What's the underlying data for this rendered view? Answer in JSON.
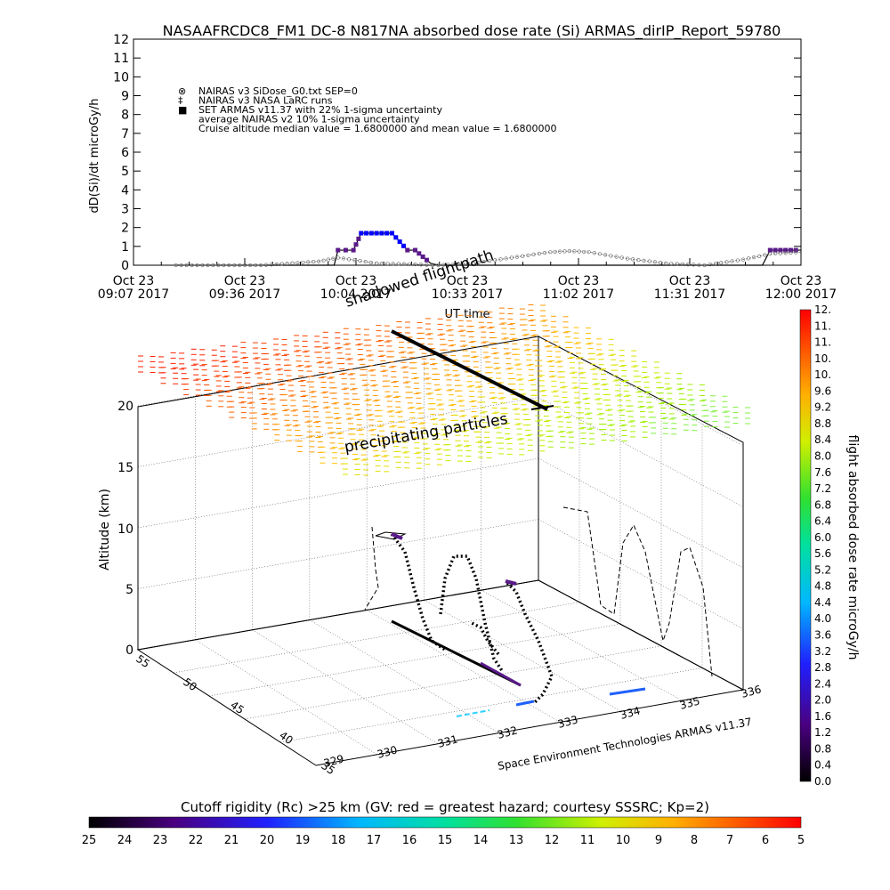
{
  "title": "NASAAFRCDC8_FM1 DC-8   N817NA absorbed dose rate (Si) ARMAS_dirIP_Report_59780",
  "chart_data": [
    {
      "type": "line",
      "ylabel": "dD(Si)/dt microGy/h",
      "xlabel": "UT time",
      "ylim": [
        0,
        12
      ],
      "yticks": [
        "0",
        "1",
        "2",
        "3",
        "4",
        "5",
        "6",
        "7",
        "8",
        "9",
        "10",
        "11",
        "12"
      ],
      "xticks": [
        {
          "top": "Oct 23",
          "bottom": "09:07 2017"
        },
        {
          "top": "Oct 23",
          "bottom": "09:36 2017"
        },
        {
          "top": "Oct 23",
          "bottom": "10:04 2017"
        },
        {
          "top": "Oct 23",
          "bottom": "10:33 2017"
        },
        {
          "top": "Oct 23",
          "bottom": "11:02 2017"
        },
        {
          "top": "Oct 23",
          "bottom": "11:31 2017"
        },
        {
          "top": "Oct 23",
          "bottom": "12:00 2017"
        }
      ],
      "x_minutes_from_start_axis_labels_note": "",
      "legend": [
        {
          "symbol": "⊗",
          "text": "NAIRAS v3 SiDose_G0.txt SEP=0"
        },
        {
          "symbol": "‡",
          "text": "NAIRAS v3 NASA LaRC runs"
        },
        {
          "symbol": "■",
          "text": "SET ARMAS v11.37 with 22% 1-sigma uncertainty",
          "color": "#0000ff"
        },
        {
          "symbol": "",
          "text": "average NAIRAS v2 10% 1-sigma uncertainty"
        },
        {
          "symbol": "",
          "text": "Cruise altitude median value = 1.6800000 and mean value = 1.6800000"
        }
      ],
      "series": [
        {
          "name": "SET ARMAS v11.37",
          "color": "#0000ff",
          "x": [
            "09:18",
            "09:57",
            "09:59",
            "10:00",
            "10:02",
            "10:04",
            "10:06",
            "10:10",
            "10:14",
            "10:18",
            "10:20",
            "10:24",
            "10:26",
            "10:30",
            "11:00",
            "11:30",
            "11:50",
            "11:52",
            "12:00"
          ],
          "values": [
            0,
            0,
            0,
            0.8,
            0.8,
            0.8,
            1.7,
            1.7,
            1.7,
            0.8,
            0.8,
            0.1,
            0,
            0,
            0,
            0,
            0,
            0.8,
            0.8
          ]
        },
        {
          "name": "NAIRAS v3 SiDose_G0.txt SEP=0",
          "color": "#666666",
          "x": [
            "09:18",
            "09:40",
            "09:55",
            "10:00",
            "10:10",
            "10:20",
            "10:26",
            "10:35",
            "10:45",
            "10:55",
            "11:00",
            "11:05",
            "11:15",
            "11:25",
            "11:35",
            "11:45",
            "11:52",
            "12:00"
          ],
          "values": [
            0,
            0,
            0.2,
            0.4,
            0.1,
            0.05,
            0,
            0.1,
            0.4,
            0.7,
            0.75,
            0.7,
            0.35,
            0.1,
            0,
            0.3,
            0.6,
            0.7
          ]
        }
      ]
    },
    {
      "type": "scatter",
      "subtype": "3d-flight-track",
      "zlabel": "Altitude (km)",
      "zticks": [
        "0",
        "5",
        "10",
        "15",
        "20"
      ],
      "lat_ticks": [
        "35",
        "40",
        "45",
        "50",
        "55"
      ],
      "lon_ticks": [
        "329",
        "330",
        "331",
        "332",
        "333",
        "334",
        "335",
        "336"
      ],
      "annotations": [
        "shadowed flightpath",
        "precipitating particles"
      ],
      "credit": "Space Environment Technologies ARMAS v11.37"
    }
  ],
  "dose_colorbar": {
    "label": "flight absorbed dose rate microGy/h",
    "ticks": [
      "0.0",
      "0.4",
      "0.8",
      "1.2",
      "1.6",
      "2.0",
      "2.4",
      "2.8",
      "3.2",
      "3.6",
      "4.0",
      "4.4",
      "4.8",
      "5.2",
      "5.6",
      "6.0",
      "6.4",
      "6.8",
      "7.2",
      "7.6",
      "8.0",
      "8.4",
      "8.8",
      "9.2",
      "9.6",
      "10.",
      "10.",
      "11.",
      "11.",
      "12."
    ]
  },
  "rigidity_colorbar": {
    "label": "Cutoff rigidity (Rc) >25 km (GV: red = greatest hazard; courtesy SSSRC; Kp=2)",
    "ticks": [
      "25",
      "24",
      "23",
      "22",
      "21",
      "20",
      "19",
      "18",
      "17",
      "16",
      "15",
      "14",
      "13",
      "12",
      "11",
      "10",
      "9",
      "8",
      "7",
      "6",
      "5"
    ]
  }
}
